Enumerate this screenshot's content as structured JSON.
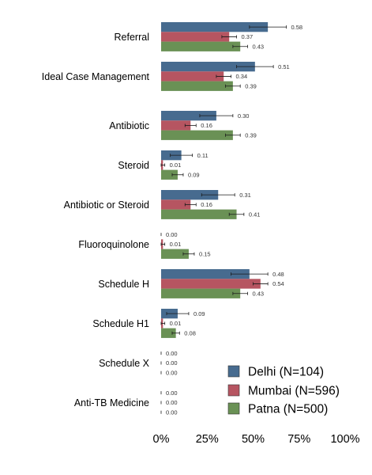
{
  "chart_data": {
    "type": "bar",
    "orientation": "horizontal",
    "title": "",
    "xlabel": "",
    "ylabel": "",
    "xlim": [
      0,
      1
    ],
    "x_ticks": [
      0,
      0.25,
      0.5,
      0.75,
      1
    ],
    "x_tick_labels": [
      "0%",
      "25%",
      "50%",
      "75%",
      "100%"
    ],
    "grid": false,
    "legend_position": "bottom-right",
    "categories": [
      "Referral",
      "Ideal Case Management",
      "Antibiotic",
      "Steroid",
      "Antibiotic or Steroid",
      "Fluoroquinolone",
      "Schedule H",
      "Schedule H1",
      "Schedule X",
      "Anti-TB Medicine"
    ],
    "series": [
      {
        "name": "Delhi (N=104)",
        "color": "#476b8f",
        "values": [
          0.58,
          0.51,
          0.3,
          0.11,
          0.31,
          0.0,
          0.48,
          0.09,
          0.0,
          0.0
        ],
        "labels": [
          "0.58",
          "0.51",
          "0.30",
          "0.11",
          "0.31",
          "0.00",
          "0.48",
          "0.09",
          "0.00",
          "0.00"
        ],
        "ci_low": [
          0.48,
          0.41,
          0.21,
          0.05,
          0.22,
          0.0,
          0.38,
          0.03,
          0.0,
          0.0
        ],
        "ci_high": [
          0.68,
          0.61,
          0.39,
          0.17,
          0.4,
          0.0,
          0.58,
          0.15,
          0.0,
          0.0
        ]
      },
      {
        "name": "Mumbai (N=596)",
        "color": "#b65561",
        "values": [
          0.37,
          0.34,
          0.16,
          0.01,
          0.16,
          0.01,
          0.54,
          0.01,
          0.0,
          0.0
        ],
        "labels": [
          "0.37",
          "0.34",
          "0.16",
          "0.01",
          "0.16",
          "0.01",
          "0.54",
          "0.01",
          "0.00",
          "0.00"
        ],
        "ci_low": [
          0.33,
          0.3,
          0.13,
          0.0,
          0.13,
          0.0,
          0.5,
          0.0,
          0.0,
          0.0
        ],
        "ci_high": [
          0.41,
          0.38,
          0.19,
          0.02,
          0.19,
          0.02,
          0.58,
          0.02,
          0.0,
          0.0
        ]
      },
      {
        "name": "Patna (N=500)",
        "color": "#6a9155",
        "values": [
          0.43,
          0.39,
          0.39,
          0.09,
          0.41,
          0.15,
          0.43,
          0.08,
          0.0,
          0.0
        ],
        "labels": [
          "0.43",
          "0.39",
          "0.39",
          "0.09",
          "0.41",
          "0.15",
          "0.43",
          "0.08",
          "0.00",
          "0.00"
        ],
        "ci_low": [
          0.39,
          0.35,
          0.35,
          0.06,
          0.37,
          0.12,
          0.39,
          0.06,
          0.0,
          0.0
        ],
        "ci_high": [
          0.47,
          0.43,
          0.43,
          0.12,
          0.45,
          0.18,
          0.47,
          0.1,
          0.0,
          0.0
        ]
      }
    ]
  }
}
